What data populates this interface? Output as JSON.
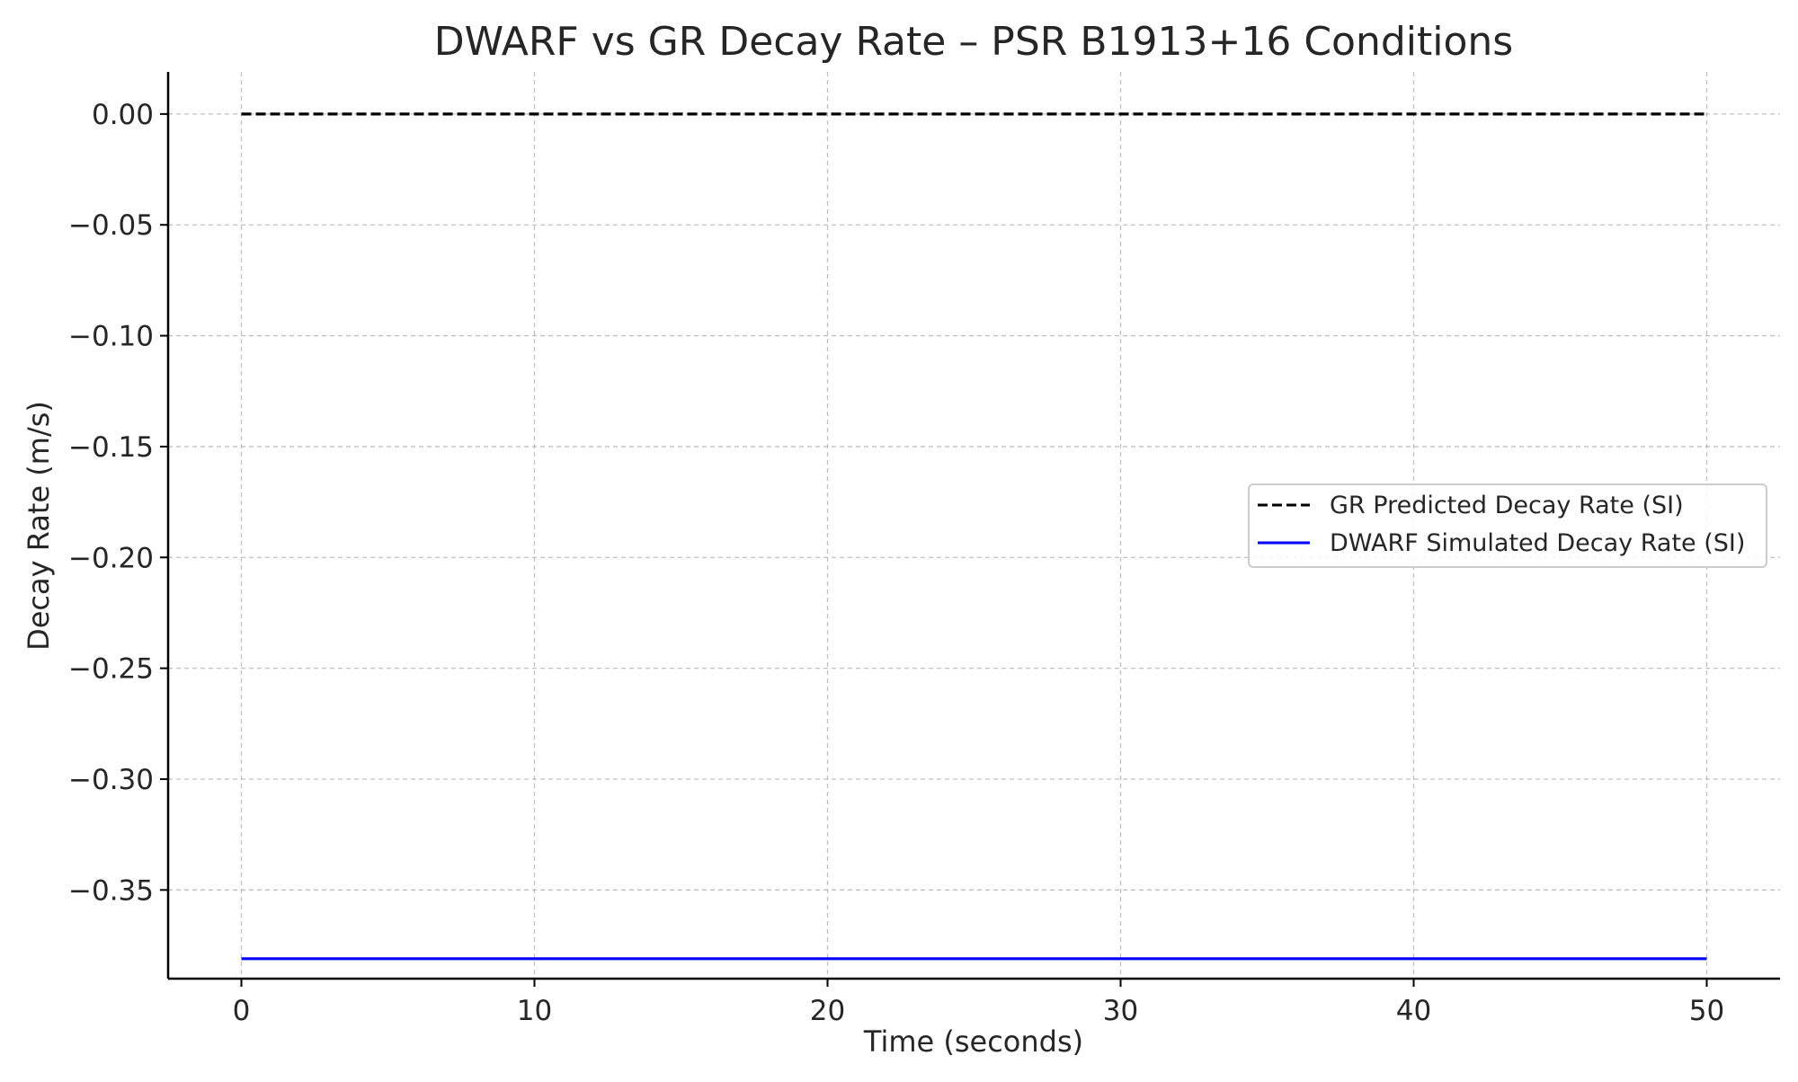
{
  "chart_data": {
    "type": "line",
    "title": "DWARF vs GR Decay Rate – PSR B1913+16 Conditions",
    "xlabel": "Time (seconds)",
    "ylabel": "Decay Rate (m/s)",
    "xlim": [
      -2.5,
      52.5
    ],
    "ylim": [
      -0.39,
      0.019
    ],
    "xticks": [
      0,
      10,
      20,
      30,
      40,
      50
    ],
    "xtick_labels": [
      "0",
      "10",
      "20",
      "30",
      "40",
      "50"
    ],
    "yticks": [
      0.0,
      -0.05,
      -0.1,
      -0.15,
      -0.2,
      -0.25,
      -0.3,
      -0.35
    ],
    "ytick_labels": [
      "0.00",
      "−0.05",
      "−0.10",
      "−0.15",
      "−0.20",
      "−0.25",
      "−0.30",
      "−0.35"
    ],
    "grid": true,
    "legend_position": "center-right",
    "series": [
      {
        "name": "GR Predicted Decay Rate (SI)",
        "color": "#000000",
        "style": "dashed",
        "x": [
          0,
          50
        ],
        "y": [
          0.0,
          0.0
        ]
      },
      {
        "name": "DWARF Simulated Decay Rate (SI)",
        "color": "#0000ff",
        "style": "solid",
        "x": [
          0,
          50
        ],
        "y": [
          -0.381,
          -0.381
        ]
      }
    ]
  }
}
